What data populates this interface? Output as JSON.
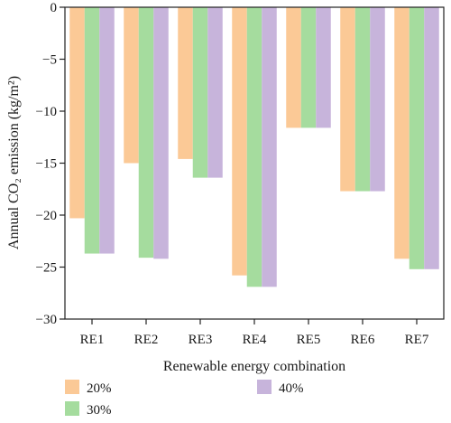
{
  "chart_data": {
    "type": "bar",
    "categories": [
      "RE1",
      "RE2",
      "RE3",
      "RE4",
      "RE5",
      "RE6",
      "RE7"
    ],
    "series": [
      {
        "name": "20%",
        "color": "#fbc996",
        "values": [
          -20.3,
          -15.0,
          -14.6,
          -25.8,
          -11.6,
          -17.7,
          -24.2
        ]
      },
      {
        "name": "30%",
        "color": "#a5dc9e",
        "values": [
          -23.7,
          -24.1,
          -16.4,
          -26.9,
          -11.6,
          -17.7,
          -25.2
        ]
      },
      {
        "name": "40%",
        "color": "#c7b4db",
        "values": [
          -23.7,
          -24.2,
          -16.4,
          -26.9,
          -11.6,
          -17.7,
          -25.2
        ]
      }
    ],
    "xlabel": "Renewable energy combination",
    "ylabel": "Annual CO₂ emission (kg/m²)",
    "ylim": [
      -30,
      0
    ],
    "yticks": [
      0,
      -5,
      -10,
      -15,
      -20,
      -25,
      -30
    ],
    "grid": false,
    "legend_position": "bottom"
  }
}
